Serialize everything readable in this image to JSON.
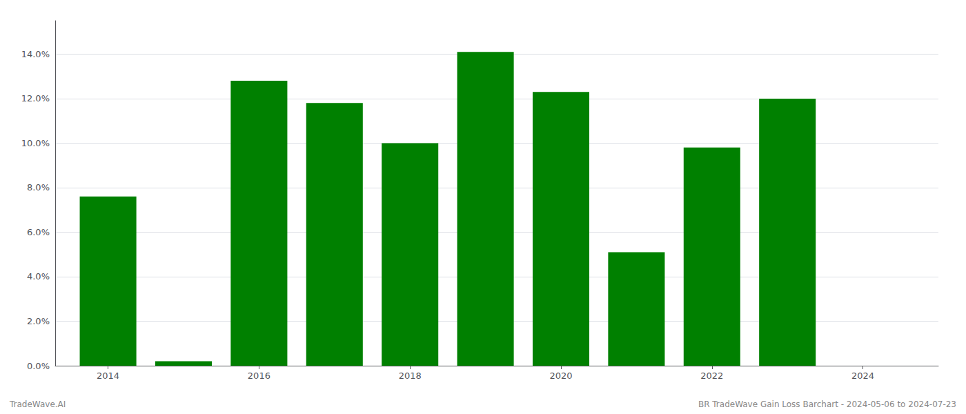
{
  "chart_data": {
    "type": "bar",
    "x": [
      2014,
      2015,
      2016,
      2017,
      2018,
      2019,
      2020,
      2021,
      2022,
      2023
    ],
    "values": [
      0.076,
      0.002,
      0.128,
      0.118,
      0.1,
      0.141,
      0.123,
      0.051,
      0.098,
      0.12
    ],
    "color": "#008000",
    "xlim": [
      2013.3,
      2025.0
    ],
    "xticks": [
      2014,
      2016,
      2018,
      2020,
      2022,
      2024
    ],
    "ylim": [
      0,
      0.155
    ],
    "yticks": [
      {
        "value": 0.0,
        "label": "0.0%"
      },
      {
        "value": 0.02,
        "label": "2.0%"
      },
      {
        "value": 0.04,
        "label": "4.0%"
      },
      {
        "value": 0.06,
        "label": "6.0%"
      },
      {
        "value": 0.08,
        "label": "8.0%"
      },
      {
        "value": 0.1,
        "label": "10.0%"
      },
      {
        "value": 0.12,
        "label": "12.0%"
      },
      {
        "value": 0.14,
        "label": "14.0%"
      }
    ],
    "grid": true,
    "annotations": [
      "TradeWave.AI",
      "BR TradeWave Gain Loss Barchart - 2024-05-06 to 2024-07-23"
    ]
  }
}
